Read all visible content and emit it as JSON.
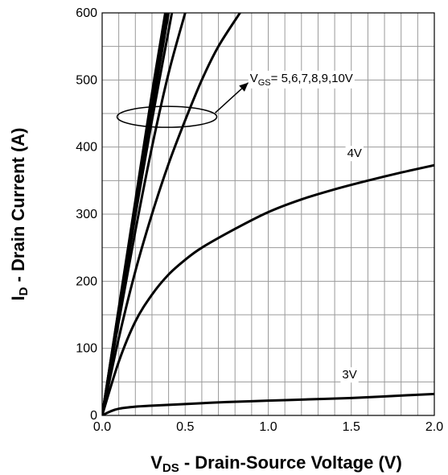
{
  "chart_data": {
    "type": "line",
    "xlabel": {
      "main": "V",
      "sub": "DS",
      "rest": " - Drain-Source Voltage (V)"
    },
    "ylabel": {
      "main": "I",
      "sub": "D",
      "rest": " - Drain Current (A)"
    },
    "xlim": [
      0,
      2.0
    ],
    "ylim": [
      0,
      600
    ],
    "x_ticks": [
      0,
      0.5,
      1.0,
      1.5,
      2.0
    ],
    "x_tick_labels": [
      "0.0",
      "0.5",
      "1.0",
      "1.5",
      "2.0"
    ],
    "y_ticks": [
      0,
      100,
      200,
      300,
      400,
      500,
      600
    ],
    "y_tick_labels": [
      "0",
      "100",
      "200",
      "300",
      "400",
      "500",
      "600"
    ],
    "grid": true,
    "minor_grid_step_x": 0.1,
    "minor_grid_step_y": 50,
    "series": [
      {
        "name": "10V",
        "x": [
          0,
          0.1,
          0.2,
          0.3,
          0.38
        ],
        "y": [
          0,
          160,
          320,
          480,
          600
        ]
      },
      {
        "name": "9V",
        "x": [
          0,
          0.1,
          0.2,
          0.3,
          0.39
        ],
        "y": [
          0,
          158,
          315,
          470,
          600
        ]
      },
      {
        "name": "8V",
        "x": [
          0,
          0.1,
          0.2,
          0.3,
          0.4
        ],
        "y": [
          0,
          155,
          308,
          455,
          600
        ]
      },
      {
        "name": "7V",
        "x": [
          0,
          0.1,
          0.2,
          0.3,
          0.42
        ],
        "y": [
          0,
          150,
          298,
          440,
          600
        ]
      },
      {
        "name": "6V",
        "x": [
          0,
          0.1,
          0.2,
          0.3,
          0.4,
          0.5
        ],
        "y": [
          0,
          140,
          275,
          400,
          510,
          600
        ]
      },
      {
        "name": "5V",
        "x": [
          0,
          0.1,
          0.2,
          0.3,
          0.4,
          0.5,
          0.6,
          0.7,
          0.83
        ],
        "y": [
          0,
          115,
          215,
          300,
          375,
          440,
          500,
          550,
          600
        ]
      },
      {
        "name": "4V",
        "x": [
          0,
          0.1,
          0.2,
          0.3,
          0.4,
          0.5,
          0.6,
          0.8,
          1.0,
          1.2,
          1.4,
          1.6,
          1.8,
          2.0
        ],
        "y": [
          0,
          80,
          140,
          180,
          210,
          232,
          250,
          278,
          303,
          322,
          337,
          350,
          362,
          373
        ]
      },
      {
        "name": "3V",
        "x": [
          0,
          0.05,
          0.1,
          0.2,
          0.3,
          0.5,
          0.75,
          1.0,
          1.25,
          1.5,
          1.75,
          2.0
        ],
        "y": [
          0,
          6,
          10,
          13,
          14.5,
          17,
          20,
          22,
          24,
          26,
          29,
          32
        ]
      }
    ],
    "annotations": {
      "vgs_group": {
        "main": "V",
        "sub": "GS",
        "rest": "= 5,6,7,8,9,10V"
      },
      "label_4v": "4V",
      "label_3v": "3V"
    },
    "line_color": "#000000"
  }
}
